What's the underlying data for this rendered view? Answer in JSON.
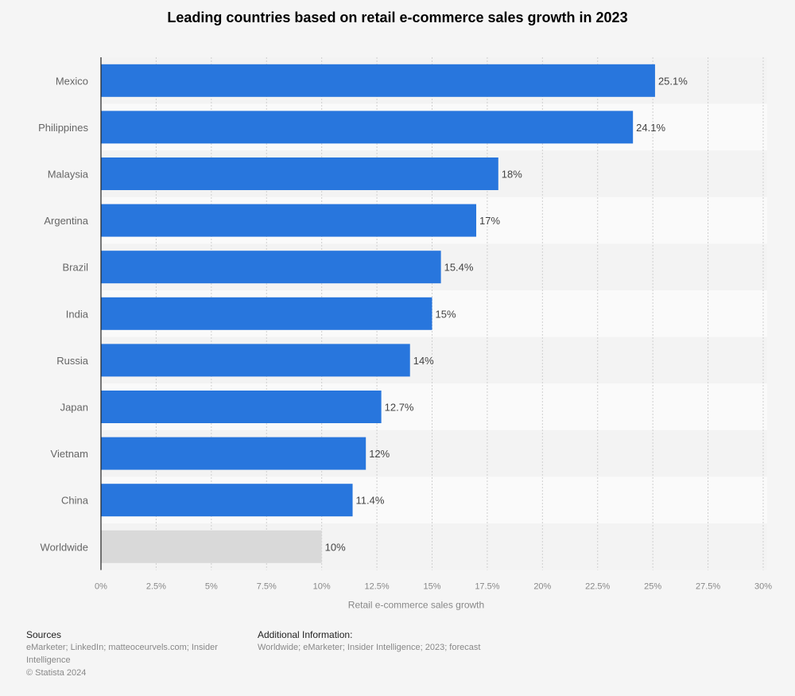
{
  "chart_data": {
    "type": "bar",
    "orientation": "horizontal",
    "title": "Leading countries based on retail e-commerce sales growth in 2023",
    "xlabel": "Retail e-commerce sales growth",
    "ylabel": "",
    "categories": [
      "Mexico",
      "Philippines",
      "Malaysia",
      "Argentina",
      "Brazil",
      "India",
      "Russia",
      "Japan",
      "Vietnam",
      "China",
      "Worldwide"
    ],
    "values": [
      25.1,
      24.1,
      18,
      17,
      15.4,
      15,
      14,
      12.7,
      12,
      11.4,
      10
    ],
    "data_labels": [
      "25.1%",
      "24.1%",
      "18%",
      "17%",
      "15.4%",
      "15%",
      "14%",
      "12.7%",
      "12%",
      "11.4%",
      "10%"
    ],
    "xlim": [
      0,
      30
    ],
    "xticks": [
      0,
      2.5,
      5,
      7.5,
      10,
      12.5,
      15,
      17.5,
      20,
      22.5,
      25,
      27.5,
      30
    ],
    "xtick_labels": [
      "0%",
      "2.5%",
      "5%",
      "7.5%",
      "10%",
      "12.5%",
      "15%",
      "17.5%",
      "20%",
      "22.5%",
      "25%",
      "27.5%",
      "30%"
    ],
    "grid": true,
    "colors": {
      "bar": "#2876dd",
      "highlight_bar": "#d9d9d9"
    }
  },
  "footer": {
    "sources_title": "Sources",
    "sources_text": "eMarketer; LinkedIn; matteoceurvels.com; Insider Intelligence",
    "copyright": "© Statista 2024",
    "additional_title": "Additional Information:",
    "additional_text": "Worldwide; eMarketer; Insider Intelligence; 2023; forecast"
  }
}
